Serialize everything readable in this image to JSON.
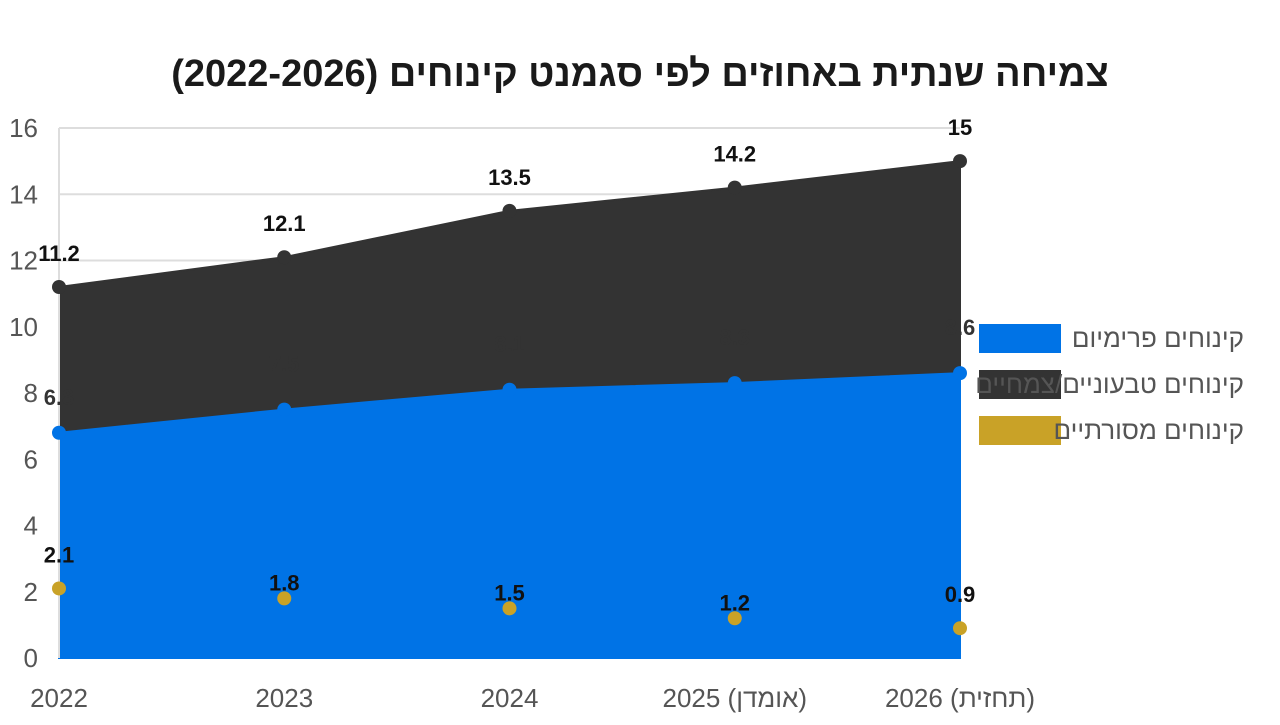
{
  "chart_data": {
    "type": "area",
    "title": "צמיחה שנתית באחוזים לפי סגמנט קינוחים (2022-2026)",
    "xlabel": "",
    "ylabel": "",
    "ylim": [
      0,
      16
    ],
    "yticks": [
      0,
      2,
      4,
      6,
      8,
      10,
      12,
      14,
      16
    ],
    "grid": true,
    "legend_position": "right",
    "categories": [
      "2022",
      "2023",
      "2024",
      "2025 (אומדן)",
      "2026 (תחזית)"
    ],
    "series": [
      {
        "name": "קינוחים פרימיום",
        "color": "#0073e6",
        "values": [
          6.8,
          7.5,
          8.1,
          8.3,
          8.6
        ],
        "label_color": "#333333"
      },
      {
        "name": "קינוחים טבעוניים/צמחיים",
        "color": "#333333",
        "values": [
          11.2,
          12.1,
          13.5,
          14.2,
          15
        ],
        "label_color": "#111111"
      },
      {
        "name": "קינוחים מסורתיים",
        "color": "#c9a227",
        "values": [
          2.1,
          1.8,
          1.5,
          1.2,
          0.9
        ],
        "label_color": "#111111"
      }
    ]
  }
}
